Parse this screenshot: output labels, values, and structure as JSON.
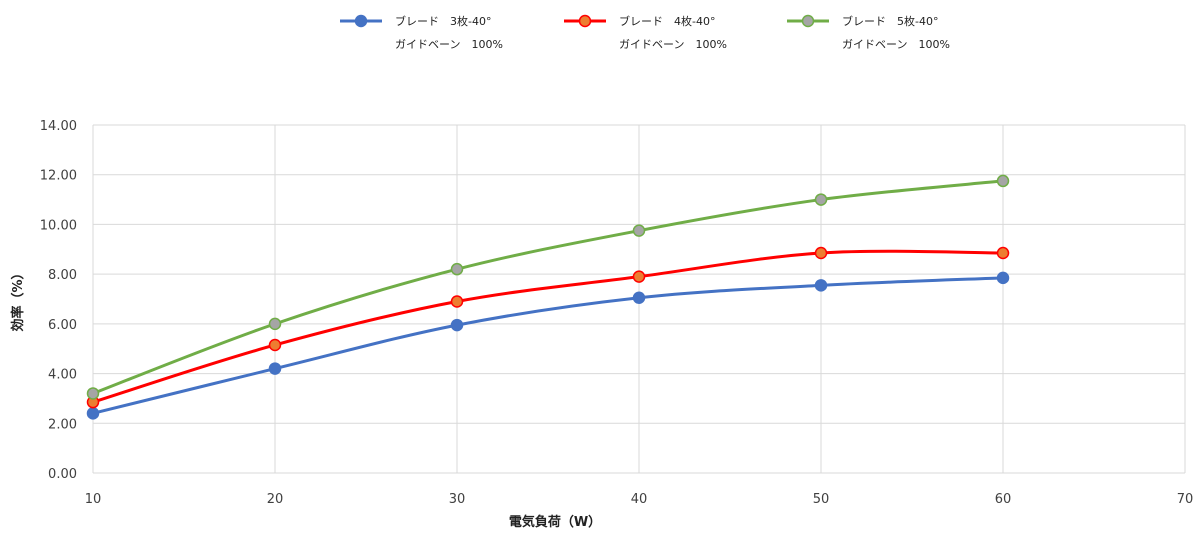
{
  "chart_data": {
    "type": "line",
    "xlabel": "電気負荷（W）",
    "ylabel": "効率（%）",
    "xlim": [
      10,
      70
    ],
    "xticks": [
      "10",
      "20",
      "30",
      "40",
      "50",
      "60",
      "70"
    ],
    "ylim": [
      0,
      14
    ],
    "yticks": [
      "0.00",
      "2.00",
      "4.00",
      "6.00",
      "8.00",
      "10.00",
      "12.00",
      "14.00"
    ],
    "grid": true,
    "legend_position": "top",
    "x": [
      10,
      20,
      30,
      40,
      50,
      60
    ],
    "series": [
      {
        "name": "ブレード　3枚-40°",
        "name_line2": "ガイドベーン　100%",
        "color": "#4472C4",
        "marker_fill": "#4472C4",
        "values": [
          2.4,
          4.2,
          5.95,
          7.05,
          7.55,
          7.85
        ]
      },
      {
        "name": "ブレード　4枚-40°",
        "name_line2": "ガイドベーン　100%",
        "color": "#FF0000",
        "marker_fill": "#ED7D31",
        "values": [
          2.85,
          5.15,
          6.9,
          7.9,
          8.85,
          8.85
        ]
      },
      {
        "name": "ブレード　5枚-40°",
        "name_line2": "ガイドベーン　100%",
        "color": "#70AD47",
        "marker_fill": "#A5A5A5",
        "values": [
          3.2,
          6.0,
          8.2,
          9.75,
          11.0,
          11.75
        ]
      }
    ]
  }
}
